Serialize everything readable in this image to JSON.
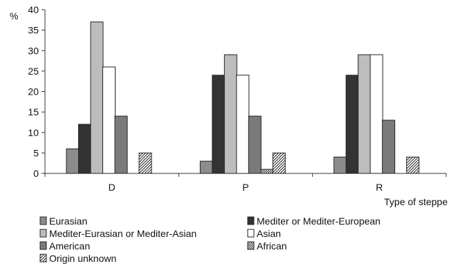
{
  "chart_data": {
    "type": "bar",
    "title": "",
    "xlabel": "Type of steppe",
    "ylabel": "%",
    "ylim": [
      0,
      40
    ],
    "yticks": [
      0,
      5,
      10,
      15,
      20,
      25,
      30,
      35,
      40
    ],
    "grid": false,
    "legend_position": "bottom",
    "categories": [
      "D",
      "P",
      "R"
    ],
    "series": [
      {
        "name": "Eurasian",
        "values": [
          6,
          3,
          4
        ],
        "fill": "#8c8c8c",
        "pattern": "solid"
      },
      {
        "name": "Mediter or Mediter-European",
        "values": [
          12,
          24,
          24
        ],
        "fill": "#333333",
        "pattern": "solid"
      },
      {
        "name": "Mediter-Eurasian or Mediter-Asian",
        "values": [
          37,
          29,
          29
        ],
        "fill": "#bdbdbd",
        "pattern": "solid"
      },
      {
        "name": "Asian",
        "values": [
          26,
          24,
          29
        ],
        "fill": "#ffffff",
        "pattern": "solid"
      },
      {
        "name": "American",
        "values": [
          14,
          14,
          13
        ],
        "fill": "#7a7a7a",
        "pattern": "solid"
      },
      {
        "name": "African",
        "values": [
          0,
          1,
          0
        ],
        "fill": "#ffffff",
        "pattern": "dots"
      },
      {
        "name": "Origin unknown",
        "values": [
          5,
          5,
          4
        ],
        "fill": "#ffffff",
        "pattern": "hatch"
      }
    ]
  }
}
